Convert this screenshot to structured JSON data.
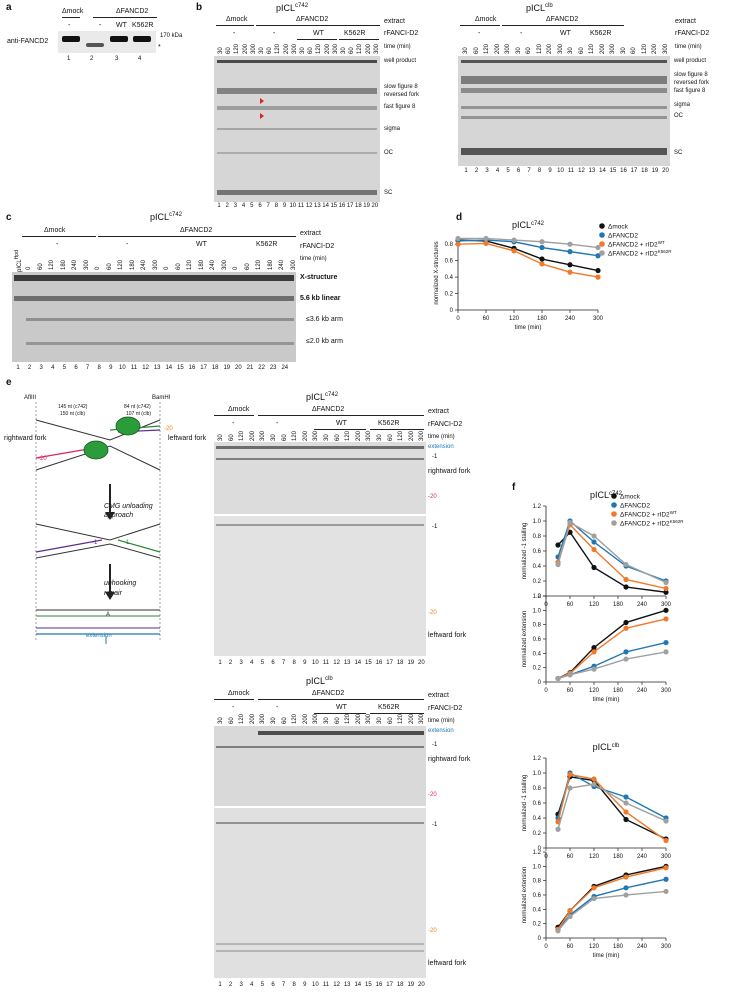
{
  "panel_letters": [
    "a",
    "b",
    "c",
    "d",
    "e",
    "f"
  ],
  "panel_a": {
    "groups": [
      "Δmock",
      "ΔFANCD2"
    ],
    "rfanci_row": [
      "-",
      "-",
      "WT",
      "K562R"
    ],
    "antibody": "anti-FANCD2",
    "marker": "170 kDa",
    "asterisk": "*",
    "lanes": [
      "1",
      "2",
      "3",
      "4"
    ]
  },
  "panel_b": {
    "left_title": "pICL",
    "left_title_sup": "c742",
    "right_title": "pICL",
    "right_title_sup": "clb",
    "groups": [
      "Δmock",
      "ΔFANCD2"
    ],
    "extract": "extract",
    "rfanci": "rFANCI-D2",
    "conditions": [
      "-",
      "-",
      "WT",
      "K562R"
    ],
    "time": "time (min)",
    "times": [
      "30",
      "60",
      "120",
      "200",
      "300"
    ],
    "bands_left": [
      "well product",
      "slow figure 8",
      "reversed fork",
      "fast figure 8",
      "sigma",
      "OC",
      "SC"
    ],
    "bands_right": [
      "well product",
      "slow figure 8",
      "reversed fork",
      "fast figure 8",
      "sigma",
      "OC",
      "SC"
    ],
    "lanes": [
      "1",
      "2",
      "3",
      "4",
      "5",
      "6",
      "7",
      "8",
      "9",
      "10",
      "11",
      "12",
      "13",
      "14",
      "15",
      "16",
      "17",
      "18",
      "19",
      "20"
    ]
  },
  "panel_c": {
    "title": "pICL",
    "title_sup": "c742",
    "groups": [
      "Δmock",
      "ΔFANCD2"
    ],
    "extract": "extract",
    "rfanci": "rFANCI-D2",
    "conditions": [
      "-",
      "-",
      "WT",
      "K562R"
    ],
    "time": "time (min)",
    "first_lane": "pICL",
    "first_lane_sup": "Hpd",
    "times": [
      "0",
      "60",
      "120",
      "180",
      "240",
      "300"
    ],
    "bands": [
      "X-structure",
      "5.6 kb linear",
      "≤3.6 kb arm",
      "≤2.0 kb arm"
    ],
    "lanes": [
      "1",
      "2",
      "3",
      "4",
      "5",
      "6",
      "7",
      "8",
      "9",
      "10",
      "11",
      "12",
      "13",
      "14",
      "15",
      "16",
      "17",
      "18",
      "19",
      "20",
      "21",
      "22",
      "23",
      "24"
    ]
  },
  "panel_e": {
    "title_top": "pICL",
    "title_top_sup": "c742",
    "title_bottom": "pICL",
    "title_bottom_sup": "clb",
    "groups": [
      "Δmock",
      "ΔFANCD2"
    ],
    "extract": "extract",
    "rfanci": "rFANCI-D2",
    "conditions": [
      "-",
      "-",
      "WT",
      "K562R"
    ],
    "time": "time (min)",
    "times": [
      "30",
      "60",
      "120",
      "200",
      "300"
    ],
    "labels_right": [
      "extension",
      "-1",
      "rightward fork",
      "-20",
      "-1",
      "-20",
      "leftward fork"
    ],
    "schematic": {
      "afl": "AflIII",
      "bam": "BamHI",
      "dist_left": "145 nt (c742)",
      "dist_left2": "150 nt (clb)",
      "dist_right": "84 nt (c742)",
      "dist_right2": "107 nt (clb)",
      "rightward": "rightward fork",
      "leftward": "leftward fork",
      "step1": "CMG unloading",
      "step1b": "approach",
      "step2": "unhooking",
      "step2b": "repair",
      "extension": "extension",
      "m20": "-20",
      "m1": "-1",
      "A": "A"
    },
    "lanes": [
      "1",
      "2",
      "3",
      "4",
      "5",
      "6",
      "7",
      "8",
      "9",
      "10",
      "11",
      "12",
      "13",
      "14",
      "15",
      "16",
      "17",
      "18",
      "19",
      "20"
    ]
  },
  "colors": {
    "mock": "#111111",
    "dfancd2": "#1f77b4",
    "wt": "#f07a2a",
    "k562r": "#a0a0a0"
  },
  "chart_data": [
    {
      "id": "d",
      "type": "line",
      "title": "pICLc742",
      "xlabel": "time (min)",
      "ylabel": "normalized X-structures",
      "xlim": [
        0,
        300
      ],
      "ylim": [
        0,
        0.9
      ],
      "xticks": [
        "0",
        "60",
        "120",
        "180",
        "240",
        "300"
      ],
      "yticks": [
        "0",
        "0.2",
        "0.4",
        "0.6",
        "0.8"
      ],
      "x": [
        0,
        60,
        120,
        180,
        240,
        300
      ],
      "series": [
        {
          "name": "Δmock",
          "values": [
            0.85,
            0.84,
            0.75,
            0.62,
            0.55,
            0.48
          ]
        },
        {
          "name": "ΔFANCD2",
          "values": [
            0.84,
            0.85,
            0.83,
            0.76,
            0.71,
            0.66
          ]
        },
        {
          "name": "ΔFANCD2 + rID2WT",
          "values": [
            0.8,
            0.81,
            0.72,
            0.56,
            0.46,
            0.4
          ]
        },
        {
          "name": "ΔFANCD2 + rID2K562R",
          "values": [
            0.87,
            0.87,
            0.85,
            0.83,
            0.8,
            0.76
          ]
        }
      ],
      "legend": [
        "Δmock",
        "ΔFANCD2",
        "ΔFANCD2 + rID2",
        "ΔFANCD2 + rID2"
      ],
      "legend_sup": [
        "",
        "",
        "WT",
        "K562R"
      ]
    },
    {
      "id": "f1",
      "type": "line",
      "title": "pICLc742",
      "xlabel": "",
      "ylabel": "normalized -1 stalling",
      "xlim": [
        0,
        300
      ],
      "ylim": [
        0,
        1.2
      ],
      "xticks": [
        "0",
        "60",
        "120",
        "180",
        "240",
        "300"
      ],
      "yticks": [
        "0",
        "0.2",
        "0.4",
        "0.6",
        "0.8",
        "1.0",
        "1.2"
      ],
      "x": [
        30,
        60,
        120,
        200,
        300
      ],
      "series": [
        {
          "name": "Δmock",
          "values": [
            0.68,
            0.85,
            0.38,
            0.12,
            0.05
          ]
        },
        {
          "name": "ΔFANCD2",
          "values": [
            0.52,
            1.0,
            0.72,
            0.4,
            0.2
          ]
        },
        {
          "name": "ΔFANCD2 + rID2WT",
          "values": [
            0.45,
            0.95,
            0.62,
            0.22,
            0.1
          ]
        },
        {
          "name": "ΔFANCD2 + rID2K562R",
          "values": [
            0.42,
            0.98,
            0.8,
            0.42,
            0.18
          ]
        }
      ],
      "legend": [
        "Δmock",
        "ΔFANCD2",
        "ΔFANCD2 + rID2",
        "ΔFANCD2 + rID2"
      ],
      "legend_sup": [
        "",
        "",
        "WT",
        "K562R"
      ]
    },
    {
      "id": "f2",
      "type": "line",
      "title": "",
      "xlabel": "time (min)",
      "ylabel": "normalized extension",
      "xlim": [
        0,
        300
      ],
      "ylim": [
        0,
        1.2
      ],
      "xticks": [
        "0",
        "60",
        "120",
        "180",
        "240",
        "300"
      ],
      "yticks": [
        "0",
        "0.2",
        "0.4",
        "0.6",
        "0.8",
        "1.0",
        "1.2"
      ],
      "x": [
        30,
        60,
        120,
        200,
        300
      ],
      "series": [
        {
          "name": "Δmock",
          "values": [
            0.05,
            0.13,
            0.48,
            0.83,
            1.0
          ]
        },
        {
          "name": "ΔFANCD2",
          "values": [
            0.05,
            0.1,
            0.22,
            0.42,
            0.55
          ]
        },
        {
          "name": "ΔFANCD2 + rID2WT",
          "values": [
            0.05,
            0.12,
            0.42,
            0.75,
            0.88
          ]
        },
        {
          "name": "ΔFANCD2 + rID2K562R",
          "values": [
            0.05,
            0.1,
            0.18,
            0.32,
            0.42
          ]
        }
      ]
    },
    {
      "id": "f3",
      "type": "line",
      "title": "pICLclb",
      "xlabel": "",
      "ylabel": "normalized -1 stalling",
      "xlim": [
        0,
        300
      ],
      "ylim": [
        0,
        1.2
      ],
      "xticks": [
        "0",
        "60",
        "120",
        "180",
        "240",
        "300"
      ],
      "yticks": [
        "0",
        "0.2",
        "0.4",
        "0.6",
        "0.8",
        "1.0",
        "1.2"
      ],
      "x": [
        30,
        60,
        120,
        200,
        300
      ],
      "series": [
        {
          "name": "Δmock",
          "values": [
            0.45,
            0.95,
            0.9,
            0.38,
            0.12
          ]
        },
        {
          "name": "ΔFANCD2",
          "values": [
            0.4,
            1.0,
            0.82,
            0.68,
            0.4
          ]
        },
        {
          "name": "ΔFANCD2 + rID2WT",
          "values": [
            0.35,
            0.98,
            0.92,
            0.48,
            0.1
          ]
        },
        {
          "name": "ΔFANCD2 + rID2K562R",
          "values": [
            0.25,
            0.8,
            0.85,
            0.6,
            0.36
          ]
        }
      ]
    },
    {
      "id": "f4",
      "type": "line",
      "title": "",
      "xlabel": "time (min)",
      "ylabel": "normalized extension",
      "xlim": [
        0,
        300
      ],
      "ylim": [
        0,
        1.2
      ],
      "xticks": [
        "0",
        "60",
        "120",
        "180",
        "240",
        "300"
      ],
      "yticks": [
        "0",
        "0.2",
        "0.4",
        "0.6",
        "0.8",
        "1.0",
        "1.2"
      ],
      "x": [
        30,
        60,
        120,
        200,
        300
      ],
      "series": [
        {
          "name": "Δmock",
          "values": [
            0.15,
            0.38,
            0.72,
            0.88,
            1.0
          ]
        },
        {
          "name": "ΔFANCD2",
          "values": [
            0.12,
            0.32,
            0.58,
            0.7,
            0.82
          ]
        },
        {
          "name": "ΔFANCD2 + rID2WT",
          "values": [
            0.12,
            0.38,
            0.7,
            0.85,
            0.98
          ]
        },
        {
          "name": "ΔFANCD2 + rID2K562R",
          "values": [
            0.1,
            0.3,
            0.55,
            0.6,
            0.65
          ]
        }
      ]
    }
  ]
}
